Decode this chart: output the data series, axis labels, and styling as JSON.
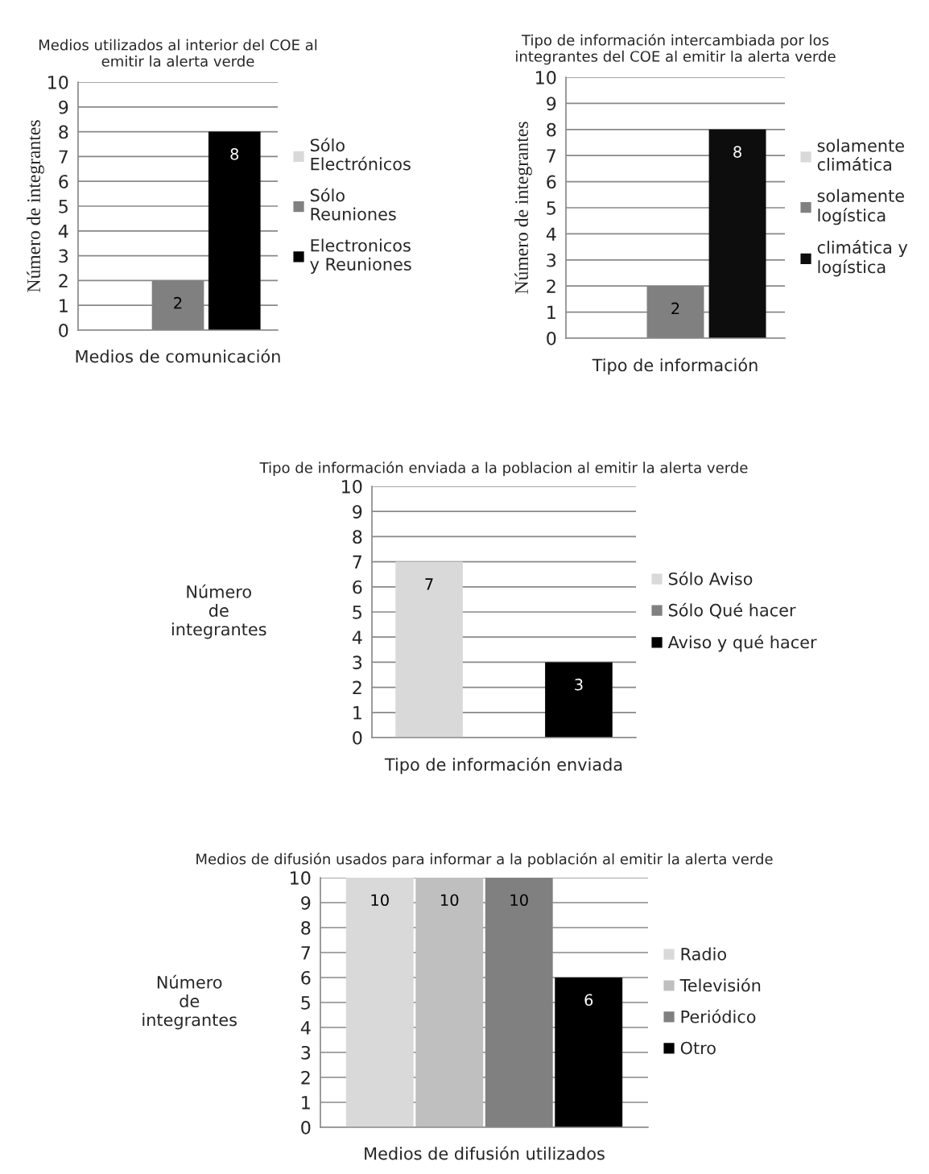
{
  "chart_data": [
    {
      "type": "bar",
      "title": "Medios utilizados al interior del COE al\nemitir la alerta verde",
      "xlabel": "Medios de comunicación",
      "ylabel": "Número de integrantes",
      "categories": [
        null
      ],
      "ylim": [
        0,
        10
      ],
      "yticks": [
        0,
        1,
        2,
        3,
        4,
        5,
        6,
        7,
        8,
        9,
        10
      ],
      "grid": "y",
      "legend": "right",
      "series": [
        {
          "name": "Sólo\nElectrónicos",
          "color": "#d9d9d9",
          "values": [
            0
          ],
          "value_labels": [
            null
          ]
        },
        {
          "name": "Sólo\nReuniones",
          "color": "#808080",
          "values": [
            2
          ],
          "value_labels": [
            "2"
          ]
        },
        {
          "name": "Electronicos\ny Reuniones",
          "color": "#000000",
          "values": [
            8
          ],
          "value_labels": [
            "8"
          ]
        }
      ]
    },
    {
      "type": "bar",
      "title": "Tipo de información intercambiada por los\nintegrantes del COE al emitir la alerta verde",
      "xlabel": "Tipo de información",
      "ylabel": "Número de integrantes",
      "categories": [
        null
      ],
      "ylim": [
        0,
        10
      ],
      "yticks": [
        0,
        1,
        2,
        3,
        4,
        5,
        6,
        7,
        8,
        9,
        10
      ],
      "grid": "y",
      "legend": "right",
      "series": [
        {
          "name": "solamente\nclimática",
          "color": "#d9d9d9",
          "values": [
            0
          ],
          "value_labels": [
            null
          ]
        },
        {
          "name": "solamente\nlogística",
          "color": "#808080",
          "values": [
            2
          ],
          "value_labels": [
            "2"
          ]
        },
        {
          "name": "climática y\nlogística",
          "color": "#0d0d0d",
          "values": [
            8
          ],
          "value_labels": [
            "8"
          ]
        }
      ]
    },
    {
      "type": "bar",
      "title": "Tipo de información enviada a la poblacion al emitir la alerta verde",
      "xlabel": "Tipo de información enviada",
      "ylabel": "Número\nde\nintegrantes",
      "categories": [
        null
      ],
      "ylim": [
        0,
        10
      ],
      "yticks": [
        0,
        1,
        2,
        3,
        4,
        5,
        6,
        7,
        8,
        9,
        10
      ],
      "grid": "y",
      "legend": "right",
      "series": [
        {
          "name": "Sólo Aviso",
          "color": "#d9d9d9",
          "values": [
            7
          ],
          "value_labels": [
            "7"
          ]
        },
        {
          "name": "Sólo Qué hacer",
          "color": "#808080",
          "values": [
            0
          ],
          "value_labels": [
            null
          ]
        },
        {
          "name": "Aviso y qué hacer",
          "color": "#000000",
          "values": [
            3
          ],
          "value_labels": [
            "3"
          ]
        }
      ]
    },
    {
      "type": "bar",
      "title": "Medios de difusión usados para informar a la población al emitir la alerta verde",
      "xlabel": "Medios de difusión utilizados",
      "ylabel": "Número\nde\nintegrantes",
      "categories": [
        null
      ],
      "ylim": [
        0,
        10
      ],
      "yticks": [
        0,
        1,
        2,
        3,
        4,
        5,
        6,
        7,
        8,
        9,
        10
      ],
      "grid": "y",
      "legend": "right",
      "data_labels": true,
      "series": [
        {
          "name": "Radio",
          "color": "#d9d9d9",
          "values": [
            10
          ]
        },
        {
          "name": "Televisión",
          "color": "#bfbfbf",
          "values": [
            10
          ]
        },
        {
          "name": "Periódico",
          "color": "#808080",
          "values": [
            10
          ]
        },
        {
          "name": "Otro",
          "color": "#000000",
          "values": [
            6
          ]
        }
      ]
    }
  ]
}
